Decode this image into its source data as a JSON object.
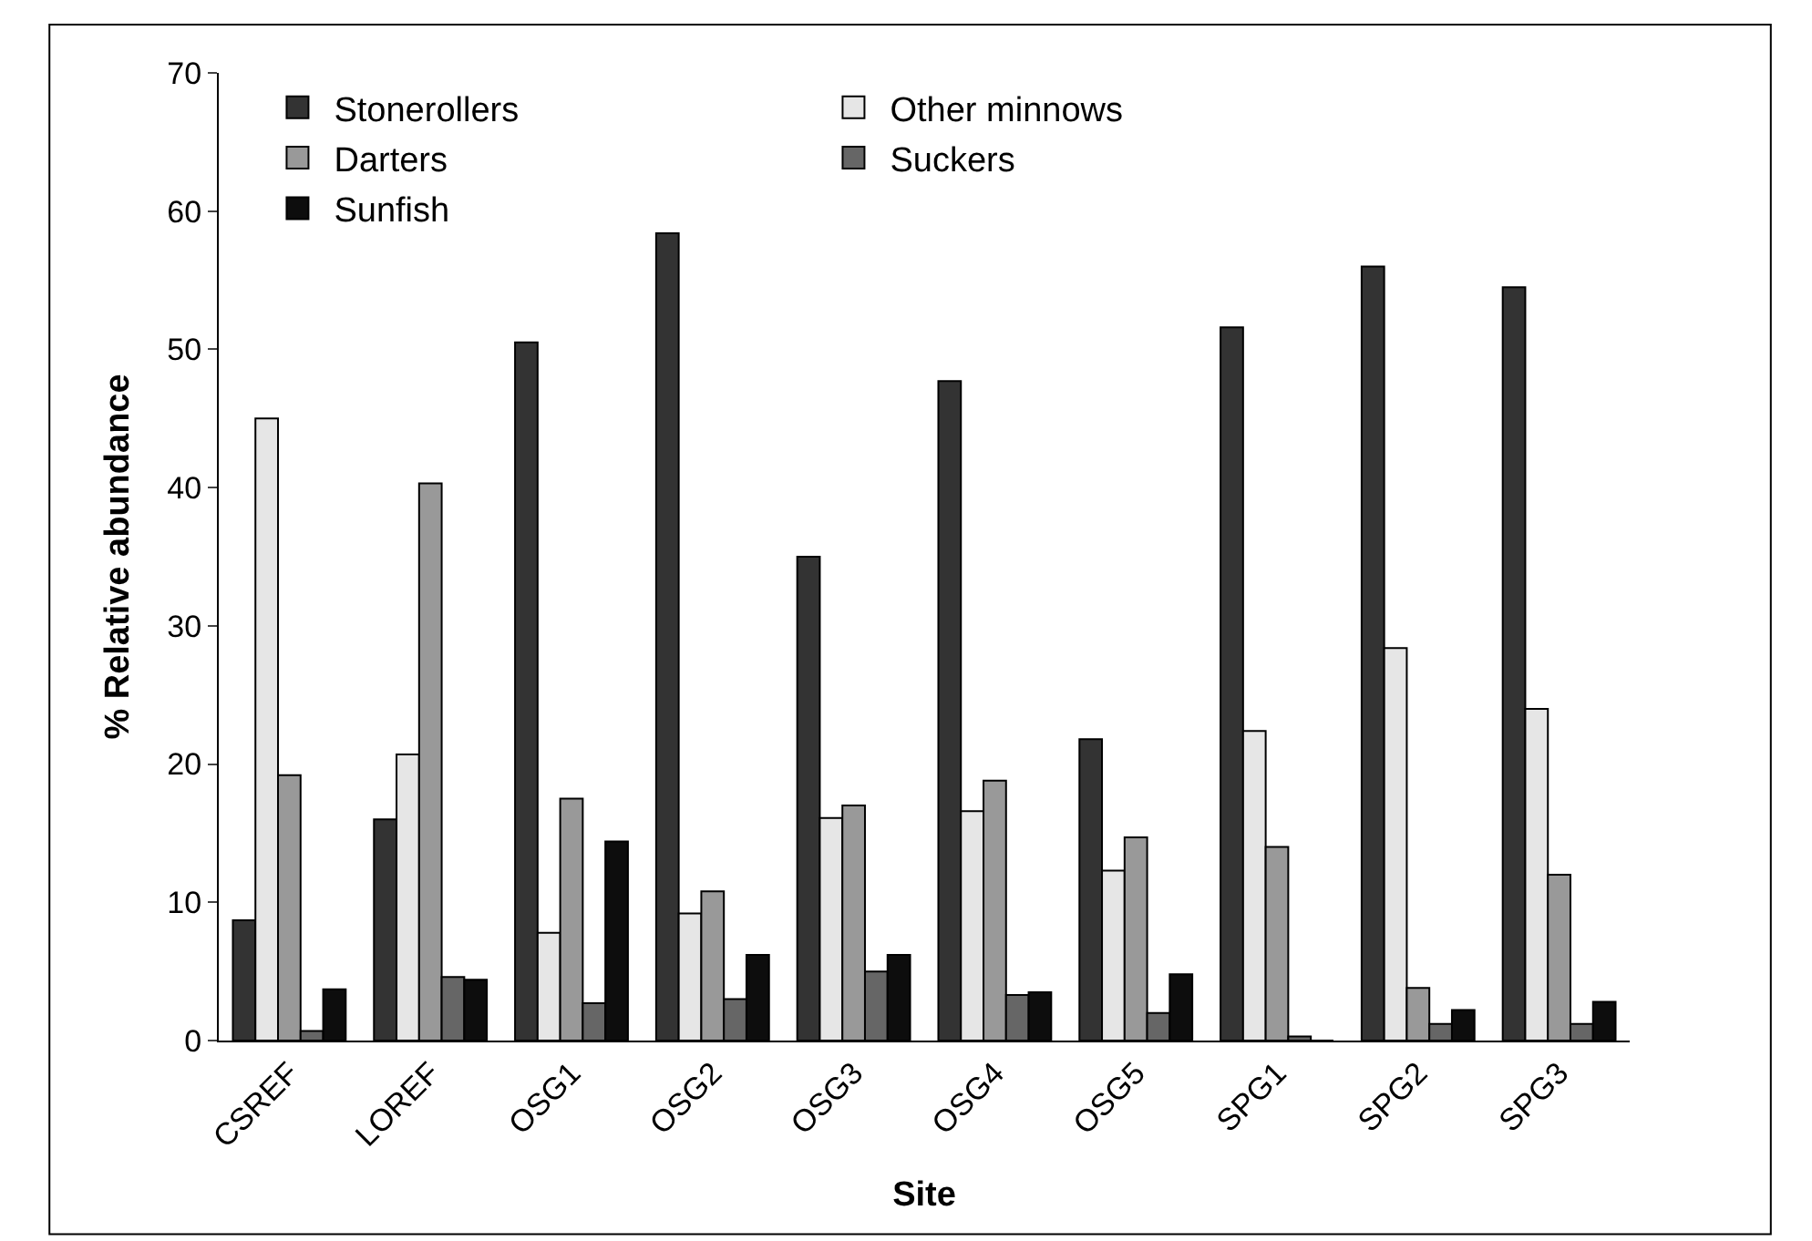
{
  "chart_data": {
    "type": "bar",
    "xlabel": "Site",
    "ylabel": "% Relative abundance",
    "categories": [
      "CSREF",
      "LOREF",
      "OSG1",
      "OSG2",
      "OSG3",
      "OSG4",
      "OSG5",
      "SPG1",
      "SPG2",
      "SPG3"
    ],
    "series": [
      {
        "name": "Stonerollers",
        "color": "#333333",
        "values": [
          8.7,
          16,
          50.5,
          58.4,
          35,
          47.7,
          21.8,
          51.6,
          56,
          54.5
        ]
      },
      {
        "name": "Other minnows",
        "color": "#e6e6e6",
        "values": [
          45,
          20.7,
          7.8,
          9.2,
          16.1,
          16.6,
          12.3,
          22.4,
          28.4,
          24
        ]
      },
      {
        "name": "Darters",
        "color": "#999999",
        "values": [
          19.2,
          40.3,
          17.5,
          10.8,
          17,
          18.8,
          14.7,
          14,
          3.8,
          12
        ]
      },
      {
        "name": "Suckers",
        "color": "#666666",
        "values": [
          0.7,
          4.6,
          2.7,
          3,
          5,
          3.3,
          2,
          0.3,
          1.2,
          1.2
        ]
      },
      {
        "name": "Sunfish",
        "color": "#0d0d0d",
        "values": [
          3.7,
          4.4,
          14.4,
          6.2,
          6.2,
          3.5,
          4.8,
          0,
          2.2,
          2.8
        ]
      }
    ],
    "ylim": [
      0,
      70
    ],
    "yticks": [
      0,
      10,
      20,
      30,
      40,
      50,
      60,
      70
    ],
    "legend": "top left"
  }
}
